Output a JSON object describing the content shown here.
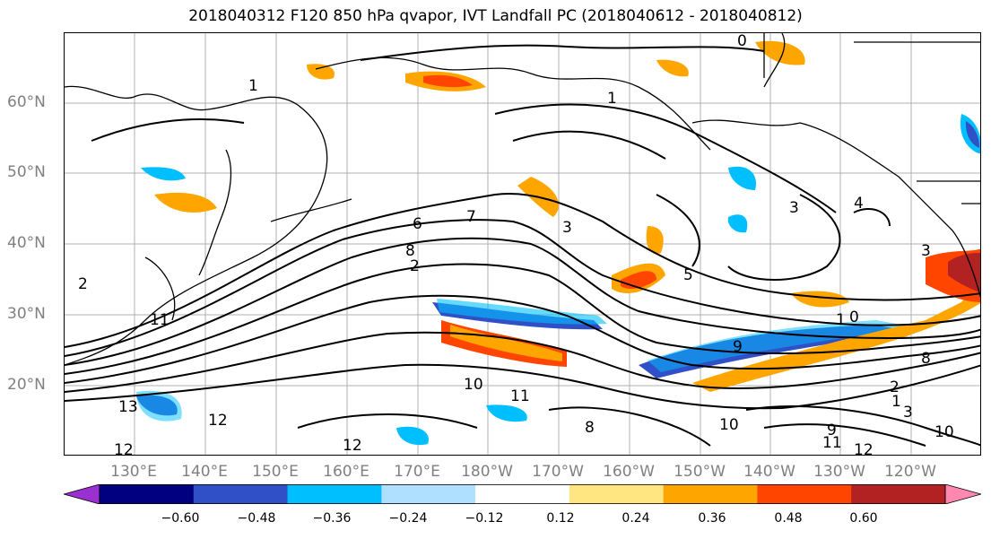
{
  "title": "2018040312 F120 850 hPa qvapor, IVT Landfall PC (2018040612 - 2018040812)",
  "lat_labels": [
    "60°N",
    "50°N",
    "40°N",
    "30°N",
    "20°N"
  ],
  "lon_labels": [
    "130°E",
    "140°E",
    "150°E",
    "160°E",
    "170°E",
    "180°W",
    "170°W",
    "160°W",
    "150°W",
    "140°W",
    "130°W",
    "120°W"
  ],
  "colorbar": {
    "colors": [
      "#9b30d0",
      "#000080",
      "#3050c8",
      "#00bfff",
      "#b0e0ff",
      "#ffffff",
      "#ffe680",
      "#ffa500",
      "#ff4500",
      "#b22222",
      "#ff88b0"
    ],
    "tick_labels": [
      "−0.60",
      "−0.48",
      "−0.36",
      "−0.24",
      "−0.12",
      "0.12",
      "0.24",
      "0.36",
      "0.48",
      "0.60"
    ],
    "extend": "both"
  },
  "contour_labels": [
    "0",
    "1",
    "1",
    "2",
    "2",
    "3",
    "3",
    "4",
    "5",
    "6",
    "7",
    "8",
    "9",
    "10",
    "11",
    "12",
    "12",
    "13",
    "10",
    "11",
    "12",
    "9",
    "2",
    "1",
    "3",
    "0",
    "1",
    "8",
    "8",
    "10",
    "11",
    "12",
    "3"
  ]
}
